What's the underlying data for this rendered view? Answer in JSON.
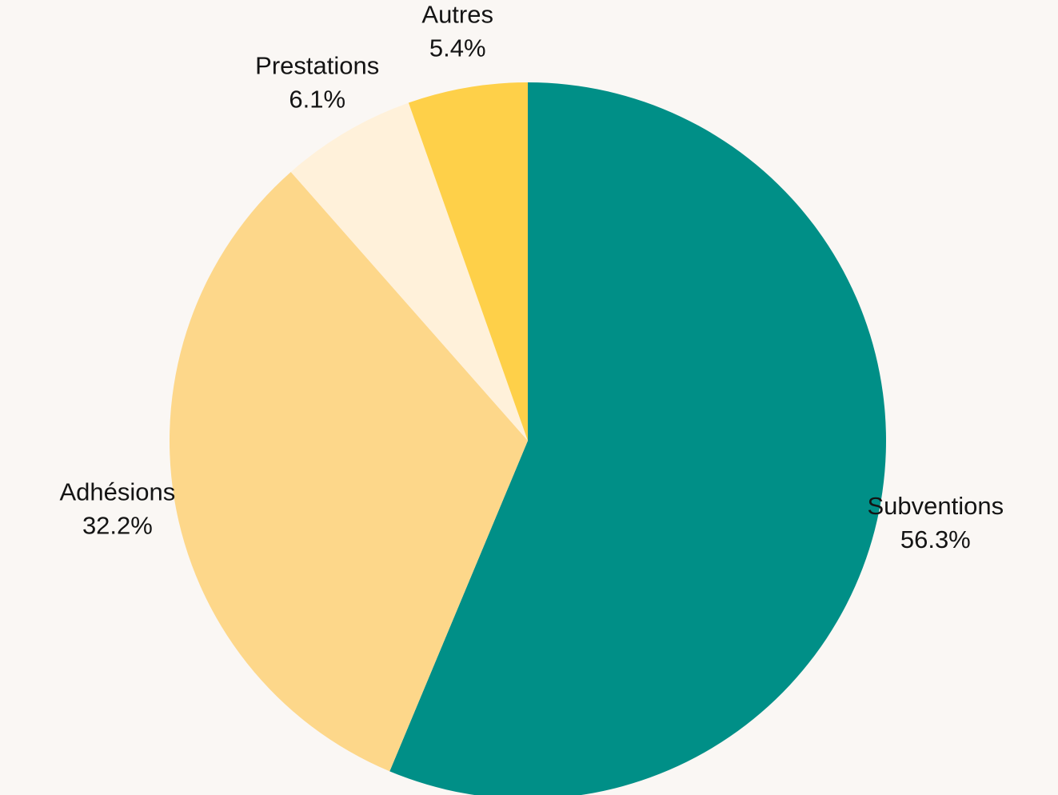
{
  "chart_data": {
    "type": "pie",
    "title": "",
    "slices": [
      {
        "name": "Subventions",
        "value": 56.3,
        "label": "56.3%",
        "color": "#008f87"
      },
      {
        "name": "Adhésions",
        "value": 32.2,
        "label": "32.2%",
        "color": "#fdd78a"
      },
      {
        "name": "Prestations",
        "value": 6.1,
        "label": "6.1%",
        "color": "#fff1da"
      },
      {
        "name": "Autres",
        "value": 5.4,
        "label": "5.4%",
        "color": "#fed049"
      }
    ],
    "start_angle_deg": 0,
    "direction": "clockwise",
    "legend": "none",
    "background": "#faf7f4"
  }
}
